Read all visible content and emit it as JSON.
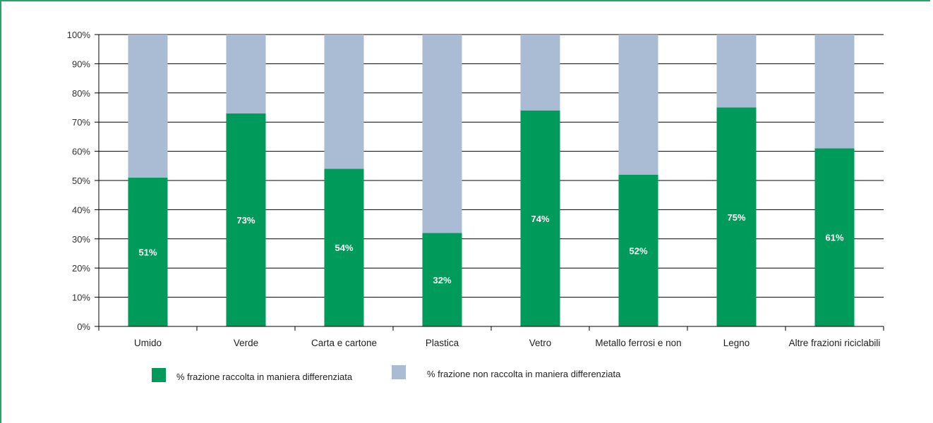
{
  "chart_data": {
    "type": "bar",
    "stacked": true,
    "categories": [
      "Umido",
      "Verde",
      "Carta e cartone",
      "Plastica",
      "Vetro",
      "Metallo ferrosi e non",
      "Legno",
      "Altre frazioni riciclabili"
    ],
    "series": [
      {
        "name": "% frazione raccolta in maniera differenziata",
        "color": "#009a5a",
        "values": [
          51,
          73,
          54,
          32,
          74,
          52,
          75,
          61
        ],
        "labels": [
          "51%",
          "73%",
          "54%",
          "32%",
          "74%",
          "52%",
          "75%",
          "61%"
        ]
      },
      {
        "name": "% frazione non raccolta in maniera differenziata",
        "color": "#a9bcd3",
        "values": [
          49,
          27,
          46,
          68,
          26,
          48,
          25,
          39
        ]
      }
    ],
    "ylim": [
      0,
      100
    ],
    "yticks": [
      "0%",
      "10%",
      "20%",
      "30%",
      "40%",
      "50%",
      "60%",
      "70%",
      "80%",
      "90%",
      "100%"
    ],
    "grid": true,
    "legend_position": "bottom"
  }
}
